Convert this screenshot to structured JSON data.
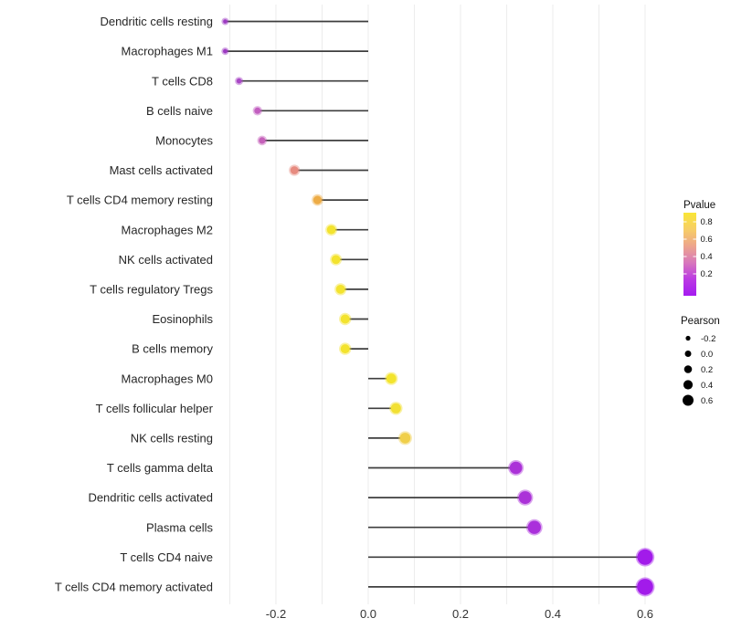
{
  "chart_data": {
    "type": "scatter",
    "subtype": "lollipop",
    "title": "",
    "xlabel": "",
    "ylabel": "",
    "xlim": [
      -0.33,
      0.66
    ],
    "x_ticks": [
      -0.2,
      0.0,
      0.2,
      0.4,
      0.6
    ],
    "x_tick_labels": [
      "-0.2",
      "0.0",
      "0.2",
      "0.4",
      "0.6"
    ],
    "grid": "vertical gridlines every 0.1 from -0.3 to 0.6, light gray, no horizontal gridlines",
    "legend_position": "right",
    "categories": [
      "Dendritic cells resting",
      "Macrophages M1",
      "T cells CD8",
      "B cells naive",
      "Monocytes",
      "Mast cells activated",
      "T cells CD4 memory resting",
      "Macrophages M2",
      "NK cells activated",
      "T cells regulatory  Tregs",
      "Eosinophils",
      "B cells memory",
      "Macrophages M0",
      "T cells follicular helper",
      "NK cells resting",
      "T cells gamma delta",
      "Dendritic cells activated",
      "Plasma cells",
      "T cells CD4 naive",
      "T cells CD4 memory activated"
    ],
    "series": [
      {
        "name": "Pearson correlation (dot position & size), Pvalue (dot color)",
        "points": [
          {
            "label": "Dendritic cells resting",
            "pearson": -0.31,
            "pvalue_approx": 0.05,
            "color": "#9D3AC3",
            "r": 2.3
          },
          {
            "label": "Macrophages M1",
            "pearson": -0.31,
            "pvalue_approx": 0.05,
            "color": "#9D3AC3",
            "r": 2.4
          },
          {
            "label": "T cells CD8",
            "pearson": -0.28,
            "pvalue_approx": 0.15,
            "color": "#A948C6",
            "r": 2.8
          },
          {
            "label": "B cells naive",
            "pearson": -0.24,
            "pvalue_approx": 0.3,
            "color": "#C25FC0",
            "r": 3.5
          },
          {
            "label": "Monocytes",
            "pearson": -0.23,
            "pvalue_approx": 0.3,
            "color": "#C561BA",
            "r": 3.6
          },
          {
            "label": "Mast cells activated",
            "pearson": -0.16,
            "pvalue_approx": 0.5,
            "color": "#E78B80",
            "r": 4.4
          },
          {
            "label": "T cells CD4 memory resting",
            "pearson": -0.11,
            "pvalue_approx": 0.65,
            "color": "#EDAC46",
            "r": 4.6
          },
          {
            "label": "Macrophages M2",
            "pearson": -0.08,
            "pvalue_approx": 0.8,
            "color": "#F3E32E",
            "r": 4.8
          },
          {
            "label": "NK cells activated",
            "pearson": -0.07,
            "pvalue_approx": 0.8,
            "color": "#F3E32E",
            "r": 4.8
          },
          {
            "label": "T cells regulatory  Tregs",
            "pearson": -0.06,
            "pvalue_approx": 0.8,
            "color": "#F3E32E",
            "r": 4.9
          },
          {
            "label": "Eosinophils",
            "pearson": -0.05,
            "pvalue_approx": 0.8,
            "color": "#F3E32E",
            "r": 5.0
          },
          {
            "label": "B cells memory",
            "pearson": -0.05,
            "pvalue_approx": 0.8,
            "color": "#F3E32E",
            "r": 5.0
          },
          {
            "label": "Macrophages M0",
            "pearson": 0.05,
            "pvalue_approx": 0.8,
            "color": "#F3E42D",
            "r": 5.4
          },
          {
            "label": "T cells follicular helper",
            "pearson": 0.06,
            "pvalue_approx": 0.8,
            "color": "#F2E032",
            "r": 5.5
          },
          {
            "label": "NK cells resting",
            "pearson": 0.08,
            "pvalue_approx": 0.7,
            "color": "#F0CF4A",
            "r": 5.8
          },
          {
            "label": "T cells gamma delta",
            "pearson": 0.32,
            "pvalue_approx": 0.02,
            "color": "#AB32D8",
            "r": 6.8
          },
          {
            "label": "Dendritic cells activated",
            "pearson": 0.34,
            "pvalue_approx": 0.02,
            "color": "#AB32D8",
            "r": 7.0
          },
          {
            "label": "Plasma cells",
            "pearson": 0.36,
            "pvalue_approx": 0.02,
            "color": "#AA30DB",
            "r": 7.2
          },
          {
            "label": "T cells CD4 naive",
            "pearson": 0.6,
            "pvalue_approx": 0.005,
            "color": "#A21BEA",
            "r": 8.5
          },
          {
            "label": "T cells CD4 memory activated",
            "pearson": 0.6,
            "pvalue_approx": 0.005,
            "color": "#A21BEA",
            "r": 8.8
          }
        ]
      }
    ],
    "stem_color": "#3E3E3E",
    "gridline_color": "#EDEDED",
    "axis_text_color": "#333333",
    "category_text_color": "#262626"
  },
  "legends": {
    "pvalue": {
      "title": "Pvalue",
      "tick_labels": [
        "0.8",
        "0.6",
        "0.4",
        "0.2"
      ],
      "gradient_top_to_bottom": [
        "#F9E636",
        "#F7CE66",
        "#EDA58C",
        "#D878BC",
        "#BB3AE3",
        "#A51BF0"
      ],
      "orientation": "vertical colourbar, yellow = high pvalue, purple = low pvalue"
    },
    "pearson": {
      "title": "Pearson",
      "entries": [
        {
          "label": "-0.2",
          "r": 2.6
        },
        {
          "label": "0.0",
          "r": 3.5
        },
        {
          "label": "0.2",
          "r": 4.3
        },
        {
          "label": "0.4",
          "r": 5.1
        },
        {
          "label": "0.6",
          "r": 6.0
        }
      ],
      "dot_color": "#000000"
    }
  }
}
